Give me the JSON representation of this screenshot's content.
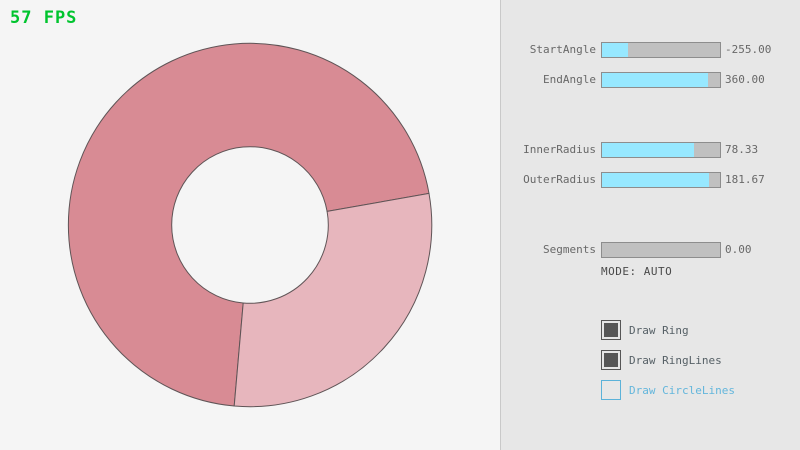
{
  "window": {
    "bg_color": "#f5f5f5",
    "panel_bg_color": "#e7e7e7"
  },
  "fps": {
    "text": "57 FPS",
    "color": "#00c42e"
  },
  "ring": {
    "fill_main": "#d88b94",
    "fill_overlap": "#e7b6bd",
    "outline": "#5f5456"
  },
  "controls": {
    "accent_fill_color": "#97e8ff",
    "sliders": [
      {
        "label": "StartAngle",
        "value": "-255.00",
        "fill_pct": 21.7
      },
      {
        "label": "EndAngle",
        "value": "360.00",
        "fill_pct": 90.0
      },
      {
        "label": "InnerRadius",
        "value": "78.33",
        "fill_pct": 78.3
      },
      {
        "label": "OuterRadius",
        "value": "181.67",
        "fill_pct": 90.8
      },
      {
        "label": "Segments",
        "value": "0.00",
        "fill_pct": 0
      }
    ],
    "mode_text": "MODE: AUTO",
    "checkboxes": [
      {
        "label": "Draw Ring",
        "checked": true
      },
      {
        "label": "Draw RingLines",
        "checked": true
      },
      {
        "label": "Draw CircleLines",
        "checked": false
      }
    ]
  }
}
